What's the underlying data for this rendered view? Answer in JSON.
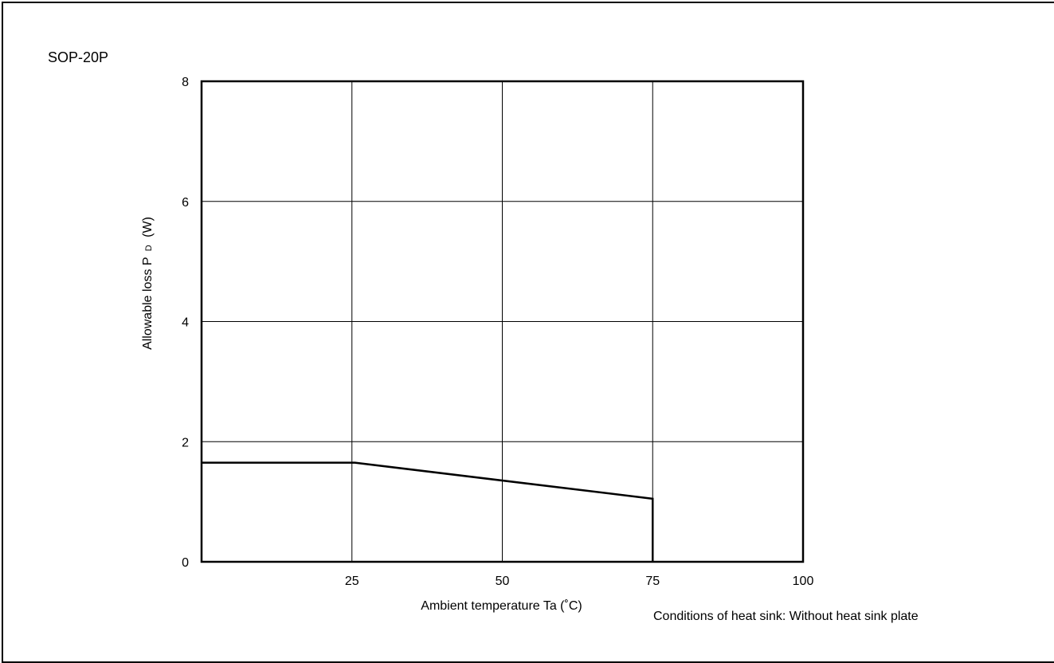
{
  "package": "SOP-20P",
  "note": "Conditions of heat sink: Without heat sink plate",
  "chart_data": {
    "type": "line",
    "title": "",
    "xlabel": "Ambient temperature Ta (˚C)",
    "ylabel_main": "Allowable loss P",
    "ylabel_sub": "D",
    "ylabel_unit": "(W)",
    "xlim": [
      0,
      100
    ],
    "ylim": [
      0,
      8
    ],
    "x_ticks": [
      0,
      25,
      50,
      75,
      100
    ],
    "x_tick_labels": [
      "",
      "25",
      "50",
      "75",
      "100"
    ],
    "y_ticks": [
      0,
      2,
      4,
      6,
      8
    ],
    "y_tick_labels": [
      "0",
      "2",
      "4",
      "6",
      "8"
    ],
    "grid": true,
    "series": [
      {
        "x": [
          0,
          25.5,
          75,
          75
        ],
        "y": [
          1.65,
          1.65,
          1.05,
          0
        ],
        "color": "#000000"
      }
    ]
  }
}
